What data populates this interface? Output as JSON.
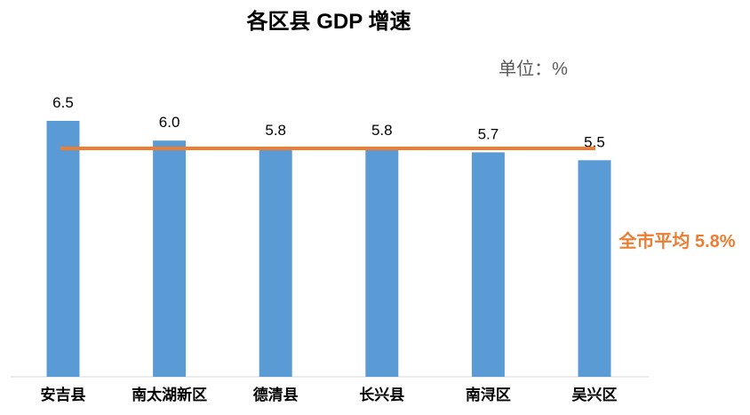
{
  "chart_data": {
    "type": "bar",
    "title": "各区县 GDP 增速",
    "unit_label": "单位：%",
    "categories": [
      "安吉县",
      "南太湖新区",
      "德清县",
      "长兴县",
      "南浔区",
      "吴兴区"
    ],
    "values": [
      6.5,
      6.0,
      5.8,
      5.8,
      5.7,
      5.5
    ],
    "value_labels": [
      "6.5",
      "6.0",
      "5.8",
      "5.8",
      "5.7",
      "5.5"
    ],
    "ylim": [
      0,
      6.5
    ],
    "grid": false,
    "reference_line": {
      "value": 5.8,
      "label": "全市平均 5.8%"
    },
    "colors": {
      "bar": "#5b9bd5",
      "reference_line": "#ed7d31",
      "text": "#000000",
      "unit_text": "#595959",
      "axis": "#d9d9d9"
    }
  }
}
